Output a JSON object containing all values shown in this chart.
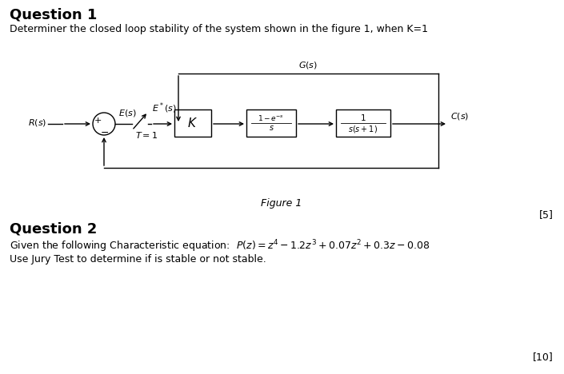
{
  "bg_color": "#ffffff",
  "subtitle_q1": "Determiner the closed loop stability of the system shown in the figure 1, when K=1",
  "figure_caption": "Figure 1",
  "score_q1": "[5]",
  "score_q2": "[10]",
  "block_K_label": "$K$",
  "block_ZOH_num": "$1-e^{-s}$",
  "block_ZOH_den": "$s$",
  "block_plant_num": "$1$",
  "block_plant_den": "$s(s+1)$",
  "feedback_label": "$G(s)$",
  "Cs_label": "$C(s)$",
  "Rs_label": "$R(s)$",
  "Es_label": "$E(s)$",
  "Estar_label": "$E^*(s)$",
  "T_label": "$T = 1$",
  "text_color": "#000000",
  "line_color": "#000000",
  "q2_eq": "Given the following Characteristic equation:  $P(z) = z^4 - 1.2z^3 + 0.07z^2 + 0.3z - 0.08$",
  "q2_jury": "Use Jury Test to determine if is stable or not stable."
}
